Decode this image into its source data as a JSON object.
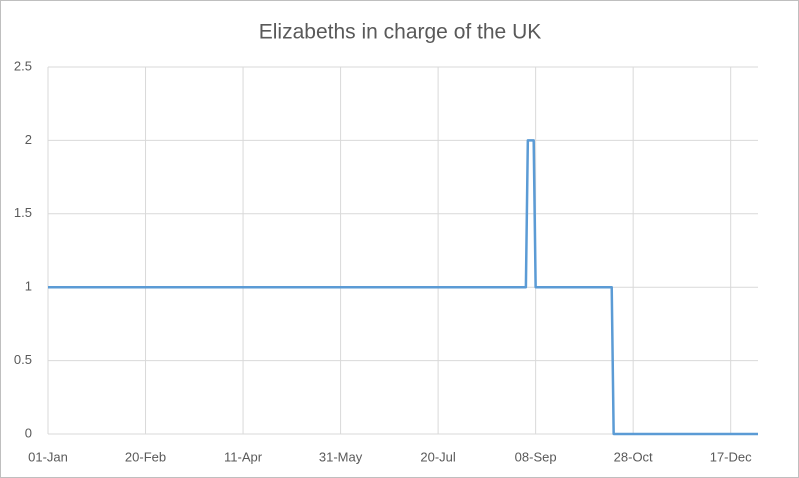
{
  "chart_data": {
    "type": "line",
    "title": "Elizabeths in charge of the UK",
    "x": [
      0,
      245,
      246,
      249,
      250,
      289,
      290,
      364
    ],
    "series": [
      {
        "name": "Elizabeths",
        "color": "#5b9bd5",
        "values": [
          1,
          1,
          2,
          2,
          1,
          1,
          0,
          0
        ]
      }
    ],
    "xlim": [
      0,
      364
    ],
    "xticks": [
      {
        "value": 0,
        "label": "01-Jan"
      },
      {
        "value": 50,
        "label": "20-Feb"
      },
      {
        "value": 100,
        "label": "11-Apr"
      },
      {
        "value": 150,
        "label": "31-May"
      },
      {
        "value": 200,
        "label": "20-Jul"
      },
      {
        "value": 250,
        "label": "08-Sep"
      },
      {
        "value": 300,
        "label": "28-Oct"
      },
      {
        "value": 350,
        "label": "17-Dec"
      }
    ],
    "ylim": [
      0,
      2.5
    ],
    "yticks": [
      0,
      0.5,
      1,
      1.5,
      2,
      2.5
    ],
    "grid": true
  }
}
